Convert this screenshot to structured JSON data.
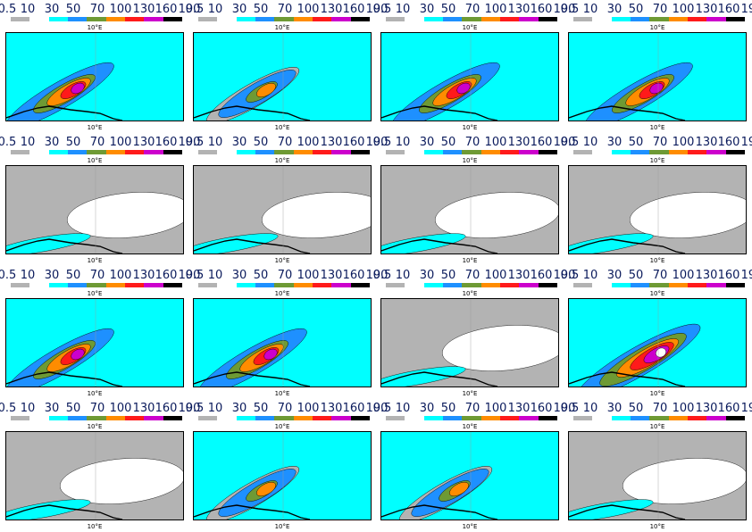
{
  "legend": {
    "labels": [
      "0.5",
      "10",
      "30",
      "50",
      "70",
      "100",
      "130",
      "160",
      "190"
    ],
    "colors": [
      "#b3b3b3",
      "#ffffff",
      "#00ffff",
      "#1e90ff",
      "#6e9a34",
      "#ff8c00",
      "#ff1a1a",
      "#cc00cc",
      "#000000"
    ]
  },
  "tick_label": "10°E",
  "panels": [
    {
      "level": "high"
    },
    {
      "level": "medium"
    },
    {
      "level": "high"
    },
    {
      "level": "high"
    },
    {
      "level": "low"
    },
    {
      "level": "low"
    },
    {
      "level": "low"
    },
    {
      "level": "low"
    },
    {
      "level": "high"
    },
    {
      "level": "high"
    },
    {
      "level": "low"
    },
    {
      "level": "very-high"
    },
    {
      "level": "low"
    },
    {
      "level": "medium"
    },
    {
      "level": "medium"
    },
    {
      "level": "low"
    }
  ]
}
